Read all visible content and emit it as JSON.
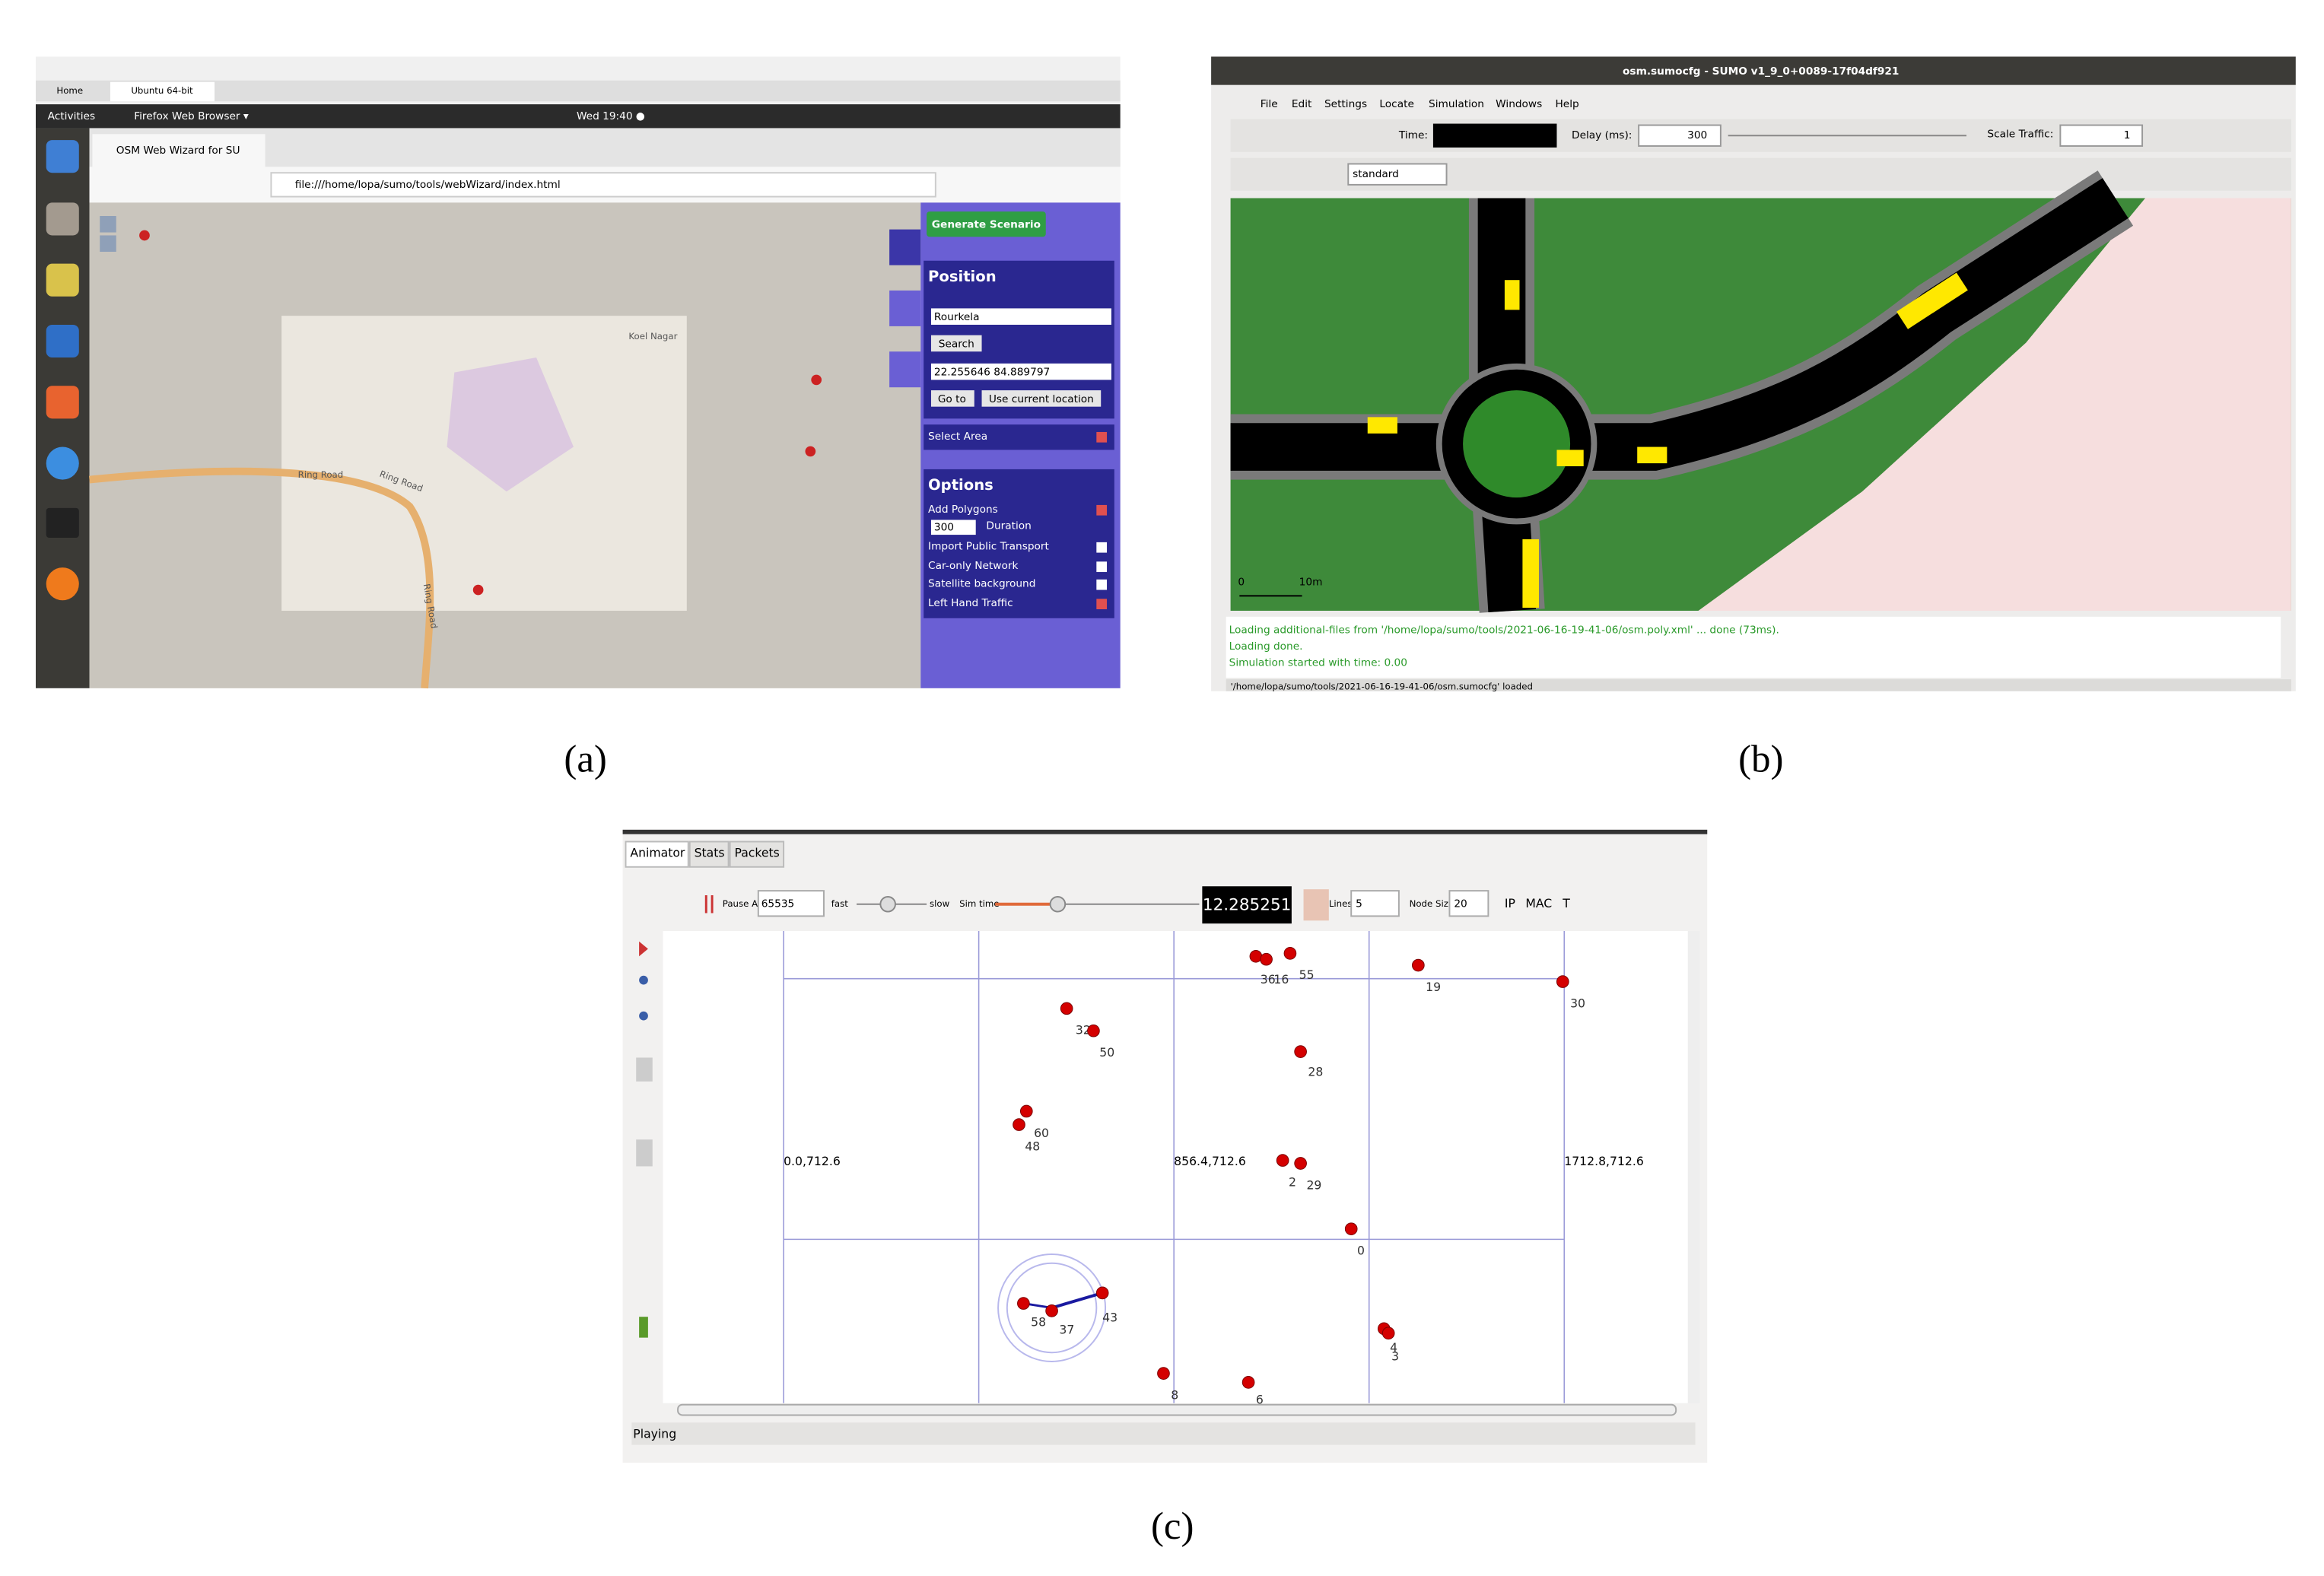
{
  "panel_a": {
    "caption": "(a)",
    "vm_tabs": [
      "Home",
      "Ubuntu 64-bit"
    ],
    "activities": "Activities",
    "app": "Firefox Web Browser ▾",
    "clock": "Wed 19:40 ●",
    "browser_tab": "OSM Web Wizard for SU",
    "url": "file:///home/lopa/sumo/tools/webWizard/index.html",
    "generate": "Generate Scenario",
    "position": {
      "title": "Position",
      "location": "Rourkela",
      "search": "Search",
      "coords": "22.255646 84.889797",
      "goto": "Go to",
      "current": "Use current location"
    },
    "select_area": "Select Area",
    "options": {
      "title": "Options",
      "duration_value": "300",
      "duration_label": "Duration",
      "items": [
        "Add Polygons",
        "Import Public Transport",
        "Car-only Network",
        "Satellite background",
        "Left Hand Traffic"
      ]
    },
    "map_labels": [
      "Koel Nagar",
      "Ring Road",
      "Ring Road",
      "Ring Road"
    ]
  },
  "panel_b": {
    "caption": "(b)",
    "title": "osm.sumocfg - SUMO v1_9_0+0089-17f04df921",
    "menu": [
      "File",
      "Edit",
      "Settings",
      "Locate",
      "Simulation",
      "Windows",
      "Help"
    ],
    "time_label": "Time:",
    "delay_label": "Delay (ms):",
    "delay": "300",
    "scale_label": "Scale Traffic:",
    "scale": "1",
    "scheme": "standard",
    "scale_bar": [
      "0",
      "10m"
    ],
    "log": [
      "Loading additional-files from '/home/lopa/sumo/tools/2021-06-16-19-41-06/osm.poly.xml' ... done (73ms).",
      "Loading done.",
      "Simulation started with time: 0.00"
    ],
    "status": "'/home/lopa/sumo/tools/2021-06-16-19-41-06/osm.sumocfg' loaded"
  },
  "panel_c": {
    "caption": "(c)",
    "tabs": [
      "Animator",
      "Stats",
      "Packets"
    ],
    "pause_label": "Pause At",
    "pause": "65535",
    "fast": "fast",
    "slow": "slow",
    "sim_time": "Sim time",
    "clock": "12.285251",
    "lines_label": "Lines",
    "lines": "5",
    "node_size_label": "Node Size",
    "node_size": "20",
    "toggles": [
      "IP",
      "MAC",
      "T"
    ],
    "grid_labels": [
      "0.0,712.6",
      "856.4,712.6",
      "1712.8,712.6"
    ],
    "node_labels": [
      "36",
      "16",
      "55",
      "19",
      "30",
      "32",
      "50",
      "28",
      "60",
      "48",
      "2",
      "29",
      "0",
      "4",
      "3",
      "58",
      "37",
      "43",
      "8",
      "6"
    ],
    "status": "Playing"
  }
}
